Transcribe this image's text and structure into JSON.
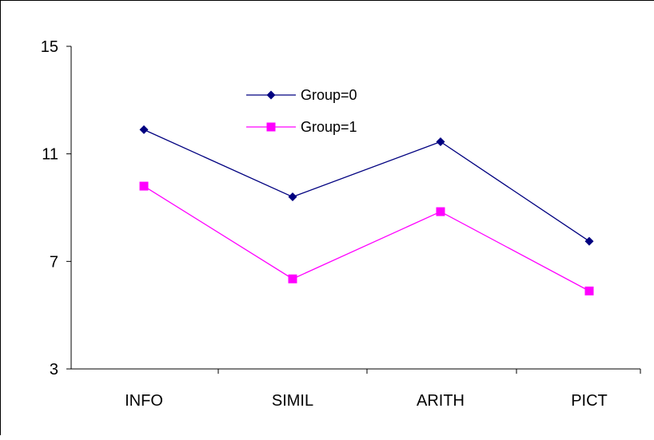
{
  "chart_data": {
    "type": "line",
    "categories": [
      "INFO",
      "SIMIL",
      "ARITH",
      "PICT"
    ],
    "series": [
      {
        "name": "Group=0",
        "values": [
          11.9,
          9.4,
          11.45,
          7.75
        ],
        "color": "#000080",
        "marker": "diamond"
      },
      {
        "name": "Group=1",
        "values": [
          9.8,
          6.35,
          8.85,
          5.9
        ],
        "color": "#FF00FF",
        "marker": "square"
      }
    ],
    "ylim": [
      3,
      15
    ],
    "yticks": [
      3,
      7,
      11,
      15
    ],
    "ytick_labels": [
      "3",
      "7",
      "11",
      "15"
    ],
    "title": "",
    "xlabel": "",
    "ylabel": "",
    "grid": false,
    "legend_position": "top-center"
  }
}
